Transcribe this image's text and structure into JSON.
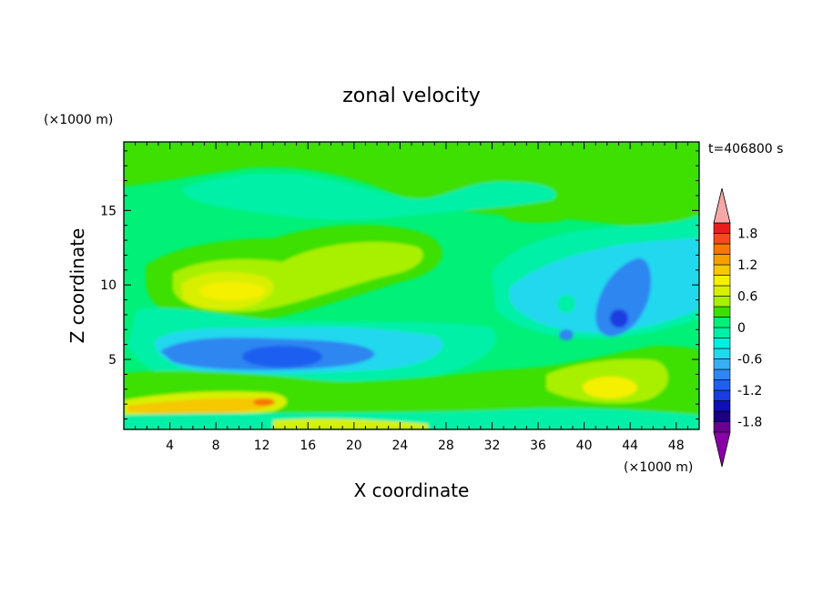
{
  "chart_data": {
    "type": "heatmap",
    "title": "zonal velocity",
    "time_label": "t=406800 s",
    "xlabel": "X coordinate",
    "ylabel": "Z coordinate",
    "x_unit": "(×1000 m)",
    "y_unit": "(×1000 m)",
    "xlim": [
      0,
      50
    ],
    "ylim": [
      0.3,
      19.6
    ],
    "x_ticks": [
      4,
      8,
      12,
      16,
      20,
      24,
      28,
      32,
      36,
      40,
      44,
      48
    ],
    "y_ticks": [
      5,
      10,
      15
    ],
    "colorbar": {
      "levels": [
        -2.0,
        -1.8,
        -1.6,
        -1.4,
        -1.2,
        -1.0,
        -0.8,
        -0.6,
        -0.4,
        -0.2,
        0.0,
        0.2,
        0.4,
        0.6,
        0.8,
        1.0,
        1.2,
        1.4,
        1.6,
        1.8,
        2.0
      ],
      "tick_labels": [
        "1.8",
        "1.2",
        "0.6",
        "0",
        "-0.6",
        "-1.2",
        "-1.8"
      ],
      "tick_values": [
        1.8,
        1.2,
        0.6,
        0.0,
        -0.6,
        -1.2,
        -1.8
      ],
      "colors": [
        "#6a008f",
        "#1a0080",
        "#0f10b8",
        "#1a3ce0",
        "#1f5ef0",
        "#2e86f0",
        "#38aef5",
        "#22d8ef",
        "#00f0e0",
        "#00f0a8",
        "#00f078",
        "#3ce000",
        "#a8f000",
        "#d8f000",
        "#f5f000",
        "#f5c800",
        "#f5a000",
        "#f57800",
        "#f04c1c",
        "#e81e1e"
      ],
      "under_color": "#8a00a8",
      "over_color": "#f5a8a8"
    },
    "features": [
      {
        "label": "negative core",
        "x": 13.5,
        "z": 5.0,
        "value": -1.1
      },
      {
        "label": "negative core",
        "x": 42.5,
        "z": 8.0,
        "value": -1.1
      },
      {
        "label": "positive max",
        "x": 9,
        "z": 9.8,
        "value": 0.7
      },
      {
        "label": "positive max",
        "x": 12.5,
        "z": 2.0,
        "value": 1.2
      },
      {
        "label": "positive max",
        "x": 43,
        "z": 2.8,
        "value": 0.8
      }
    ]
  }
}
